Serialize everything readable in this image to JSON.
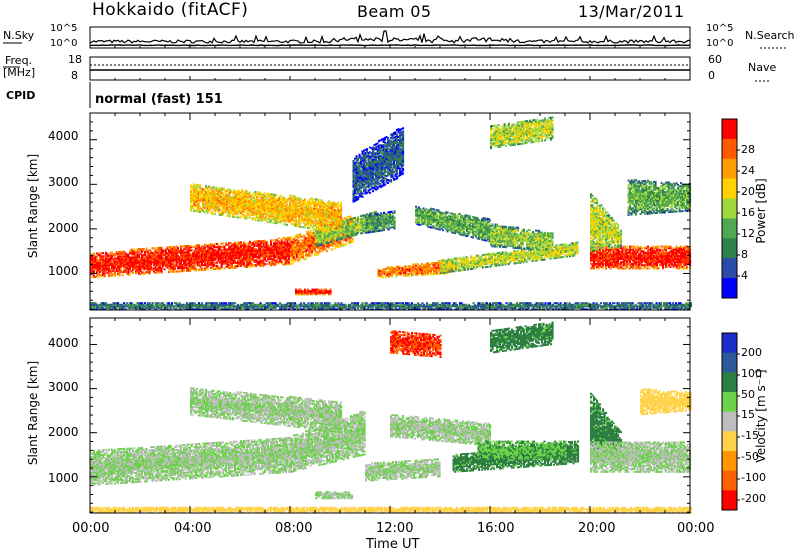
{
  "header": {
    "station": "Hokkaido (fitACF)",
    "beam": "Beam 05",
    "date": "13/Mar/2011"
  },
  "sky_noise": {
    "left_label": "N.Sky",
    "right_label": "N.Search",
    "ticks": [
      "10^5",
      "10^0"
    ],
    "right_ticks": [
      "10^5",
      "10^0"
    ]
  },
  "frequency": {
    "left_label": "Freq.",
    "unit": "[MHz]",
    "ticks": [
      "18",
      "8"
    ],
    "right_label": "Nave",
    "right_ticks": [
      "60",
      "0"
    ]
  },
  "cpid": {
    "label": "CPID",
    "mode": "normal (fast) 151"
  },
  "colors": {
    "power": [
      "#0000ff",
      "#2a4ca8",
      "#2f7f4f",
      "#52a852",
      "#a0d83a",
      "#ffd200",
      "#ff9e00",
      "#ff5a00",
      "#ff0000"
    ],
    "velocity": [
      "#1c2cc8",
      "#2d5a9a",
      "#2c7f40",
      "#6cd24a",
      "#bebebe",
      "#ffd24a",
      "#ff9600",
      "#ff6000",
      "#ff0000"
    ]
  },
  "chart_data": [
    {
      "type": "heatmap",
      "name": "power",
      "ylabel": "Slant Range [km]",
      "ylim": [
        180,
        4600
      ],
      "yticks": [
        "1000",
        "2000",
        "3000",
        "4000"
      ],
      "xlim_hours": [
        0,
        24
      ],
      "colorbar_label": "Power [dB]",
      "colorbar_ticks": [
        "4",
        "8",
        "12",
        "16",
        "20",
        "24",
        "28"
      ],
      "colorbar_range": [
        0,
        30
      ],
      "features": [
        {
          "t0": 0.0,
          "t1": 8.0,
          "r_lo0": 900,
          "r_lo1": 1200,
          "r_hi0": 1450,
          "r_hi1": 1800,
          "value": 28
        },
        {
          "t0": 8.0,
          "t1": 10.5,
          "r_lo0": 1200,
          "r_lo1": 1700,
          "r_hi0": 1800,
          "r_hi1": 2300,
          "value": 24
        },
        {
          "t0": 9.0,
          "t1": 11.5,
          "r_lo0": 1600,
          "r_lo1": 2000,
          "r_hi0": 2000,
          "r_hi1": 2400,
          "value": 14
        },
        {
          "t0": 11.0,
          "t1": 12.2,
          "r_lo0": 1900,
          "r_lo1": 2000,
          "r_hi0": 2300,
          "r_hi1": 2400,
          "value": 10
        },
        {
          "t0": 11.5,
          "t1": 14.5,
          "r_lo0": 900,
          "r_lo1": 1000,
          "r_hi0": 1100,
          "r_hi1": 1300,
          "value": 24
        },
        {
          "t0": 14.0,
          "t1": 19.5,
          "r_lo0": 1000,
          "r_lo1": 1400,
          "r_hi0": 1300,
          "r_hi1": 1700,
          "value": 16
        },
        {
          "t0": 13.0,
          "t1": 16.0,
          "r_lo0": 2100,
          "r_lo1": 1700,
          "r_hi0": 2500,
          "r_hi1": 2200,
          "value": 12
        },
        {
          "t0": 16.0,
          "t1": 18.5,
          "r_lo0": 1600,
          "r_lo1": 1500,
          "r_hi0": 2100,
          "r_hi1": 1900,
          "value": 14
        },
        {
          "t0": 20.0,
          "t1": 24.0,
          "r_lo0": 1100,
          "r_lo1": 1100,
          "r_hi0": 1600,
          "r_hi1": 1600,
          "value": 28
        },
        {
          "t0": 20.0,
          "t1": 21.2,
          "r_lo0": 1500,
          "r_lo1": 1600,
          "r_hi0": 2800,
          "r_hi1": 2000,
          "value": 16
        },
        {
          "t0": 4.0,
          "t1": 10.0,
          "r_lo0": 2400,
          "r_lo1": 1900,
          "r_hi0": 3000,
          "r_hi1": 2600,
          "value": 20
        },
        {
          "t0": 0.0,
          "t1": 24.0,
          "r_lo0": 180,
          "r_lo1": 180,
          "r_hi0": 330,
          "r_hi1": 330,
          "value": 8
        },
        {
          "t0": 8.2,
          "t1": 9.6,
          "r_lo0": 520,
          "r_lo1": 520,
          "r_hi0": 640,
          "r_hi1": 640,
          "value": 28
        },
        {
          "t0": 10.5,
          "t1": 12.5,
          "r_lo0": 2600,
          "r_lo1": 3200,
          "r_hi0": 3600,
          "r_hi1": 4300,
          "value": 6
        },
        {
          "t0": 16.0,
          "t1": 18.5,
          "r_lo0": 3800,
          "r_lo1": 4000,
          "r_hi0": 4300,
          "r_hi1": 4500,
          "value": 16
        },
        {
          "t0": 21.5,
          "t1": 24.0,
          "r_lo0": 2300,
          "r_lo1": 2400,
          "r_hi0": 3100,
          "r_hi1": 3000,
          "value": 12
        }
      ]
    },
    {
      "type": "heatmap",
      "name": "velocity",
      "ylabel": "Slant Range [km]",
      "ylim": [
        180,
        4600
      ],
      "yticks": [
        "1000",
        "2000",
        "3000",
        "4000"
      ],
      "xlim_hours": [
        0,
        24
      ],
      "xticks": [
        "00:00",
        "04:00",
        "08:00",
        "12:00",
        "16:00",
        "20:00",
        "00:00"
      ],
      "xlabel": "Time UT",
      "colorbar_label": "Velocity [m s⁻¹]",
      "colorbar_ticks": [
        "200",
        "100",
        "50",
        "15",
        "-15",
        "-50",
        "-100",
        "-200"
      ],
      "colorbar_range": [
        -250,
        250
      ],
      "features": [
        {
          "t0": 0.0,
          "t1": 8.0,
          "r_lo0": 800,
          "r_lo1": 1100,
          "r_hi0": 1600,
          "r_hi1": 1900,
          "value": 0
        },
        {
          "t0": 8.0,
          "t1": 11.0,
          "r_lo0": 1100,
          "r_lo1": 1500,
          "r_hi0": 1900,
          "r_hi1": 2500,
          "value": 0
        },
        {
          "t0": 11.0,
          "t1": 14.0,
          "r_lo0": 900,
          "r_lo1": 1000,
          "r_hi0": 1300,
          "r_hi1": 1400,
          "value": 0
        },
        {
          "t0": 12.0,
          "t1": 16.0,
          "r_lo0": 1900,
          "r_lo1": 1700,
          "r_hi0": 2400,
          "r_hi1": 2200,
          "value": 0
        },
        {
          "t0": 14.5,
          "t1": 19.5,
          "r_lo0": 1100,
          "r_lo1": 1300,
          "r_hi0": 1500,
          "r_hi1": 1800,
          "value": 40
        },
        {
          "t0": 15.5,
          "t1": 19.0,
          "r_lo0": 1400,
          "r_lo1": 1400,
          "r_hi0": 1800,
          "r_hi1": 1800,
          "value": 30
        },
        {
          "t0": 20.0,
          "t1": 21.2,
          "r_lo0": 1400,
          "r_lo1": 1300,
          "r_hi0": 2900,
          "r_hi1": 2000,
          "value": 40
        },
        {
          "t0": 20.0,
          "t1": 24.0,
          "r_lo0": 1100,
          "r_lo1": 1100,
          "r_hi0": 1800,
          "r_hi1": 1800,
          "value": 0
        },
        {
          "t0": 0.0,
          "t1": 24.0,
          "r_lo0": 180,
          "r_lo1": 180,
          "r_hi0": 300,
          "r_hi1": 300,
          "value": -30
        },
        {
          "t0": 4.0,
          "t1": 10.0,
          "r_lo0": 2400,
          "r_lo1": 2000,
          "r_hi0": 3000,
          "r_hi1": 2700,
          "value": 0
        },
        {
          "t0": 9.0,
          "t1": 10.5,
          "r_lo0": 500,
          "r_lo1": 500,
          "r_hi0": 650,
          "r_hi1": 650,
          "value": 0
        },
        {
          "t0": 12.0,
          "t1": 14.0,
          "r_lo0": 3800,
          "r_lo1": 3700,
          "r_hi0": 4300,
          "r_hi1": 4200,
          "value": -150
        },
        {
          "t0": 16.0,
          "t1": 18.5,
          "r_lo0": 3800,
          "r_lo1": 4000,
          "r_hi0": 4300,
          "r_hi1": 4500,
          "value": 40
        },
        {
          "t0": 22.0,
          "t1": 24.0,
          "r_lo0": 2400,
          "r_lo1": 2500,
          "r_hi0": 3000,
          "r_hi1": 2900,
          "value": -30
        }
      ]
    }
  ]
}
